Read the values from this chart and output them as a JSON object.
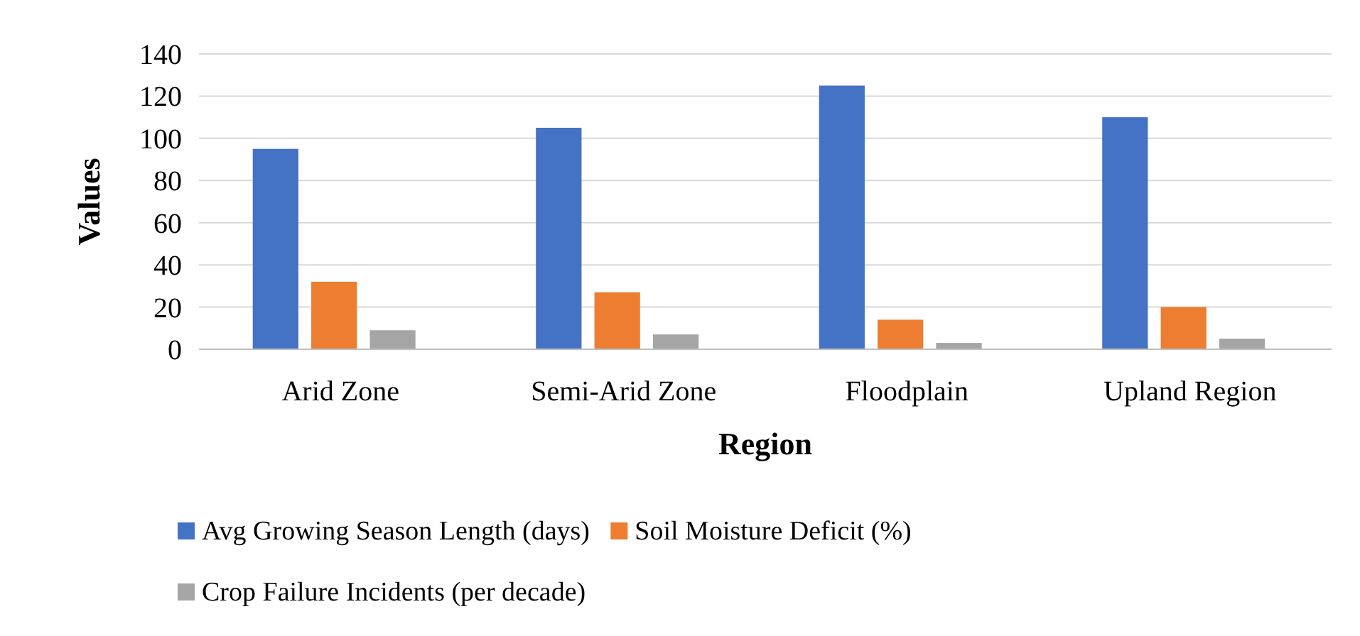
{
  "chart_data": {
    "type": "bar",
    "xlabel": "Region",
    "ylabel": "Values",
    "categories": [
      "Arid Zone",
      "Semi-Arid Zone",
      "Floodplain",
      "Upland Region"
    ],
    "series": [
      {
        "name": "Avg Growing Season Length (days)",
        "color": "#4472c4",
        "values": [
          95,
          105,
          125,
          110
        ]
      },
      {
        "name": "Soil Moisture Deficit (%)",
        "color": "#ed7d31",
        "values": [
          32,
          27,
          14,
          20
        ]
      },
      {
        "name": "Crop Failure Incidents (per decade)",
        "color": "#a5a5a5",
        "values": [
          9,
          7,
          3,
          5
        ]
      }
    ],
    "ylim": [
      0,
      140
    ],
    "yticks": [
      0,
      20,
      40,
      60,
      80,
      100,
      120,
      140
    ],
    "grid": "y",
    "legend": "bottom"
  }
}
